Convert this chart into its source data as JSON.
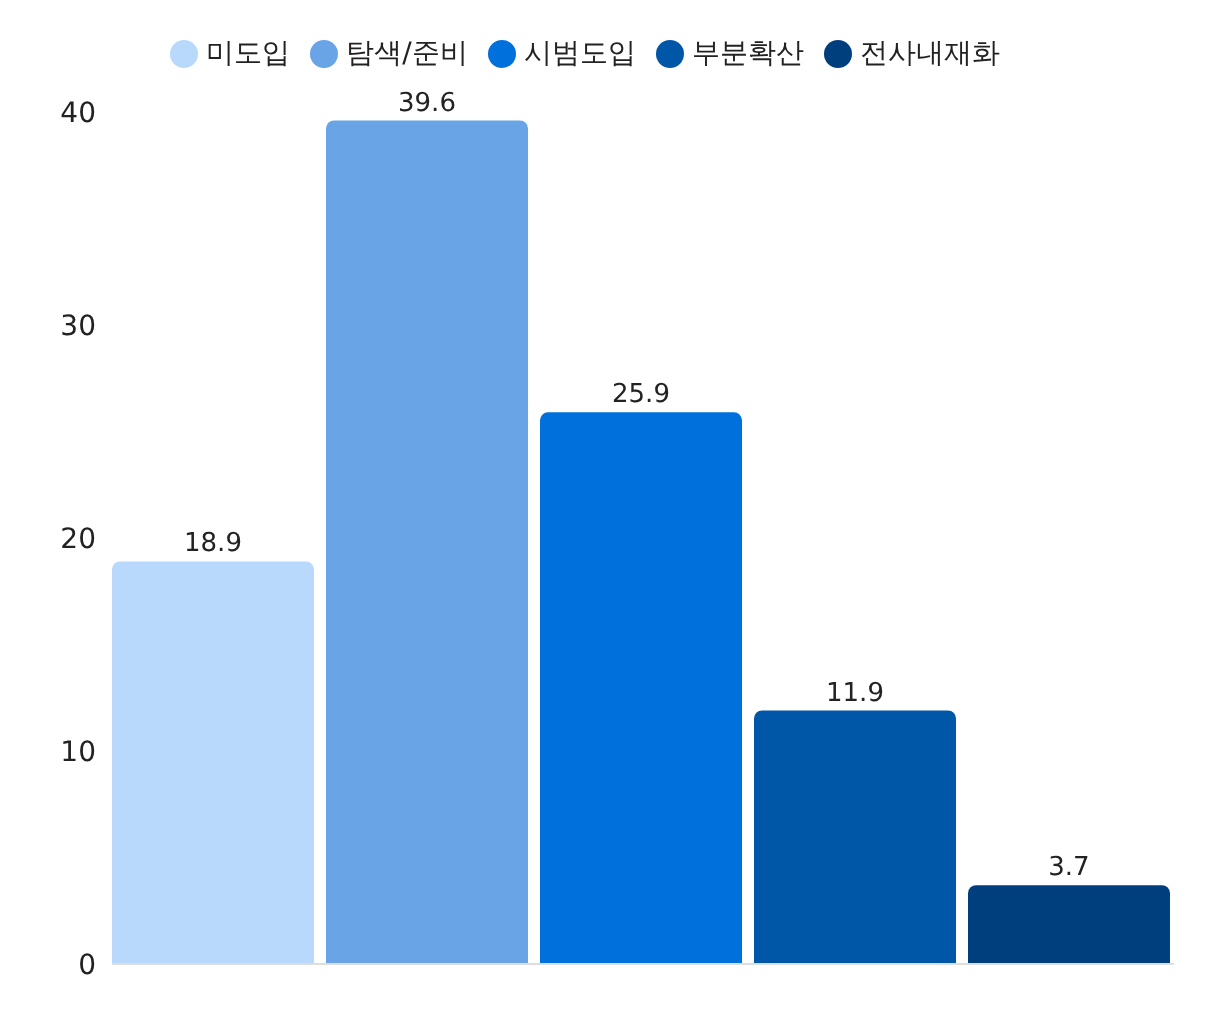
{
  "chart_data": {
    "type": "bar",
    "categories": [
      null
    ],
    "series": [
      {
        "name": "미도입",
        "color": "#b8d9fb",
        "values": [
          18.9
        ]
      },
      {
        "name": "탐색/준비",
        "color": "#68a4e6",
        "values": [
          39.6
        ]
      },
      {
        "name": "시범도입",
        "color": "#0070dd",
        "values": [
          25.9
        ]
      },
      {
        "name": "부분확산",
        "color": "#0057a8",
        "values": [
          11.9
        ]
      },
      {
        "name": "전사내재화",
        "color": "#003f7e",
        "values": [
          3.7
        ]
      }
    ],
    "ylim": [
      0,
      40
    ],
    "yticks": [
      0,
      10,
      20,
      30,
      40
    ],
    "data_labels": true,
    "legend": "top",
    "grid": false
  }
}
